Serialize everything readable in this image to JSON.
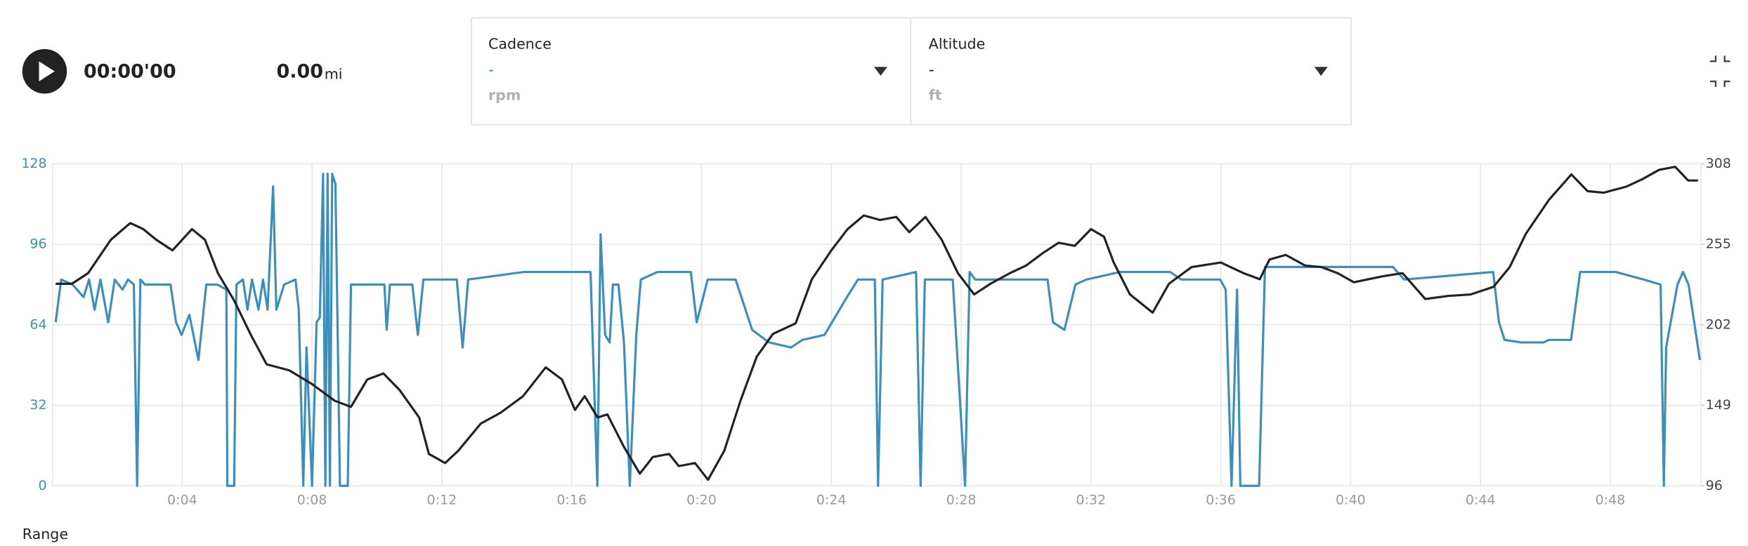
{
  "header": {
    "time": "00:00'00",
    "distance": "0.00",
    "distance_unit": "mi"
  },
  "panels": [
    {
      "value": "-",
      "unit": "rpm"
    },
    {
      "value": "-",
      "unit": "ft"
    }
  ],
  "chart_data": {
    "type": "line",
    "xlim": [
      0,
      50.8
    ],
    "xticks": [
      {
        "value": 4,
        "label": "0:04"
      },
      {
        "value": 8,
        "label": "0:08"
      },
      {
        "value": 12,
        "label": "0:12"
      },
      {
        "value": 16,
        "label": "0:16"
      },
      {
        "value": 20,
        "label": "0:20"
      },
      {
        "value": 24,
        "label": "0:24"
      },
      {
        "value": 28,
        "label": "0:28"
      },
      {
        "value": 32,
        "label": "0:32"
      },
      {
        "value": 36,
        "label": "0:36"
      },
      {
        "value": 40,
        "label": "0:40"
      },
      {
        "value": 44,
        "label": "0:44"
      },
      {
        "value": 48,
        "label": "0:48"
      }
    ],
    "ylim": [
      0,
      128
    ],
    "yticks": [
      0,
      32,
      64,
      96,
      128
    ],
    "y2lim": [
      96,
      308
    ],
    "y2ticks": [
      96,
      149,
      202,
      255,
      308
    ],
    "grid": true,
    "series": [
      {
        "name": "Cadence",
        "color": "#3a8fbd",
        "axis": "y",
        "x": [
          0.1,
          0.27,
          0.62,
          0.96,
          1.13,
          1.3,
          1.48,
          1.72,
          1.92,
          2.16,
          2.33,
          2.51,
          2.61,
          2.71,
          2.85,
          3.64,
          3.81,
          3.98,
          4.22,
          4.5,
          4.74,
          5.08,
          5.36,
          5.39,
          5.6,
          5.67,
          5.87,
          6.01,
          6.15,
          6.35,
          6.49,
          6.63,
          6.8,
          6.9,
          7.14,
          7.49,
          7.59,
          7.73,
          7.83,
          8.0,
          8.14,
          8.24,
          8.34,
          8.41,
          8.48,
          8.55,
          8.62,
          8.72,
          8.86,
          9.1,
          9.2,
          10.23,
          10.3,
          10.4,
          11.09,
          11.26,
          11.43,
          11.95,
          12.46,
          12.64,
          12.81,
          14.52,
          16.58,
          16.79,
          16.89,
          17.03,
          17.17,
          17.27,
          17.44,
          17.61,
          17.79,
          17.99,
          18.13,
          18.64,
          19.67,
          19.85,
          20.19,
          21.05,
          21.56,
          22.08,
          22.76,
          23.11,
          23.79,
          24.48,
          24.82,
          25.34,
          25.44,
          25.58,
          26.61,
          26.75,
          26.88,
          27.74,
          28.12,
          28.26,
          28.43,
          30.66,
          30.83,
          31.18,
          31.52,
          31.86,
          32.89,
          34.44,
          34.78,
          35.98,
          36.15,
          36.33,
          36.5,
          36.6,
          37.18,
          37.36,
          41.3,
          41.65,
          44.39,
          44.57,
          44.74,
          45.25,
          45.94,
          46.11,
          46.79,
          47.07,
          48.17,
          49.03,
          49.55,
          49.65,
          49.72,
          50.07,
          50.24,
          50.41,
          50.76
        ],
        "values": [
          65,
          82,
          80,
          75,
          82,
          70,
          82,
          65,
          82,
          78,
          82,
          80,
          0,
          82,
          80,
          80,
          65,
          60,
          68,
          50,
          80,
          80,
          78,
          0,
          0,
          80,
          82,
          70,
          82,
          70,
          82,
          70,
          119,
          70,
          80,
          82,
          70,
          0,
          55,
          0,
          65,
          67,
          124,
          0,
          124,
          0,
          124,
          120,
          0,
          0,
          80,
          80,
          62,
          80,
          80,
          60,
          82,
          82,
          82,
          55,
          82,
          85,
          85,
          0,
          100,
          60,
          57,
          80,
          80,
          57,
          0,
          60,
          82,
          85,
          85,
          65,
          82,
          82,
          62,
          57,
          55,
          58,
          60,
          75,
          82,
          82,
          0,
          82,
          85,
          0,
          82,
          82,
          0,
          85,
          82,
          82,
          65,
          62,
          80,
          82,
          85,
          85,
          82,
          82,
          78,
          0,
          78,
          0,
          0,
          87,
          87,
          82,
          85,
          65,
          58,
          57,
          57,
          58,
          58,
          85,
          85,
          82,
          80,
          0,
          55,
          80,
          85,
          80,
          50
        ]
      },
      {
        "name": "Altitude",
        "color": "#222222",
        "axis": "y2",
        "x": [
          0.1,
          0.6,
          1.1,
          1.8,
          2.4,
          2.8,
          3.2,
          3.7,
          4.3,
          4.7,
          5.1,
          5.6,
          6.1,
          6.6,
          7.3,
          8.0,
          8.7,
          9.2,
          9.7,
          10.2,
          10.7,
          11.3,
          11.6,
          12.1,
          12.5,
          13.2,
          13.8,
          14.5,
          15.2,
          15.7,
          16.1,
          16.4,
          16.8,
          17.1,
          17.6,
          18.1,
          18.5,
          19.0,
          19.3,
          19.8,
          20.2,
          20.7,
          21.2,
          21.7,
          22.2,
          22.9,
          23.4,
          24.0,
          24.5,
          25.0,
          25.5,
          26.0,
          26.4,
          26.9,
          27.4,
          27.9,
          28.4,
          28.9,
          29.5,
          30.0,
          30.5,
          31.0,
          31.5,
          32.0,
          32.4,
          32.7,
          33.2,
          33.9,
          34.4,
          35.1,
          36.0,
          36.7,
          37.2,
          37.5,
          38.0,
          38.6,
          39.1,
          39.6,
          40.1,
          41.0,
          41.6,
          42.3,
          43.0,
          43.7,
          44.4,
          44.9,
          45.4,
          46.1,
          46.8,
          47.3,
          47.8,
          48.5,
          49.0,
          49.5,
          50.0,
          50.4,
          50.7
        ],
        "values": [
          229,
          229,
          236,
          258,
          269,
          265,
          258,
          251,
          265,
          258,
          236,
          218,
          196,
          176,
          172,
          163,
          152,
          148,
          166,
          170,
          159,
          141,
          117,
          111,
          119,
          137,
          144,
          155,
          174,
          166,
          146,
          155,
          141,
          143,
          122,
          104,
          115,
          117,
          109,
          111,
          100,
          119,
          152,
          181,
          196,
          203,
          232,
          251,
          265,
          274,
          271,
          273,
          263,
          273,
          258,
          236,
          222,
          229,
          236,
          241,
          249,
          256,
          254,
          265,
          260,
          243,
          222,
          210,
          229,
          240,
          243,
          236,
          232,
          245,
          248,
          241,
          240,
          236,
          230,
          234,
          236,
          219,
          221,
          222,
          227,
          240,
          262,
          284,
          301,
          290,
          289,
          293,
          298,
          304,
          306,
          297,
          297
        ]
      }
    ]
  },
  "footer": {
    "label": "Range"
  }
}
